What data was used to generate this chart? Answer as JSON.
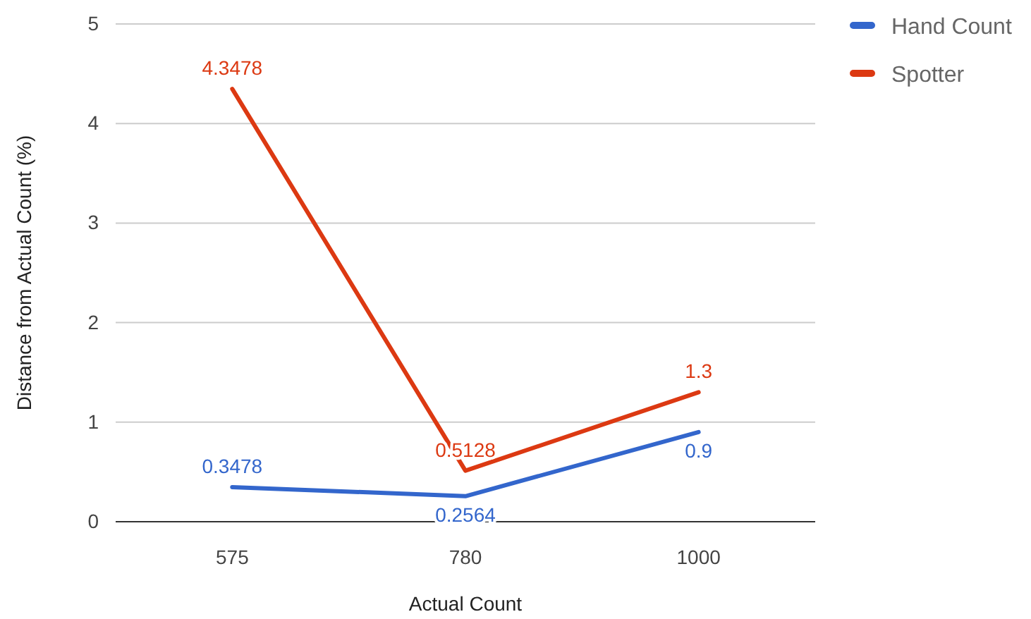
{
  "chart_data": {
    "type": "line",
    "xlabel": "Actual Count",
    "ylabel": "Distance from Actual Count (%)",
    "categories": [
      "575",
      "780",
      "1000"
    ],
    "series": [
      {
        "name": "Hand Count",
        "color": "#3366cc",
        "values": [
          0.3478,
          0.2564,
          0.9
        ]
      },
      {
        "name": "Spotter",
        "color": "#dc3912",
        "values": [
          4.3478,
          0.5128,
          1.3
        ]
      }
    ],
    "ylim": [
      0,
      5
    ],
    "yticks": [
      0,
      1,
      2,
      3,
      4,
      5
    ],
    "grid": "y",
    "legend": "top right",
    "data_labels": true,
    "marker": "none"
  }
}
